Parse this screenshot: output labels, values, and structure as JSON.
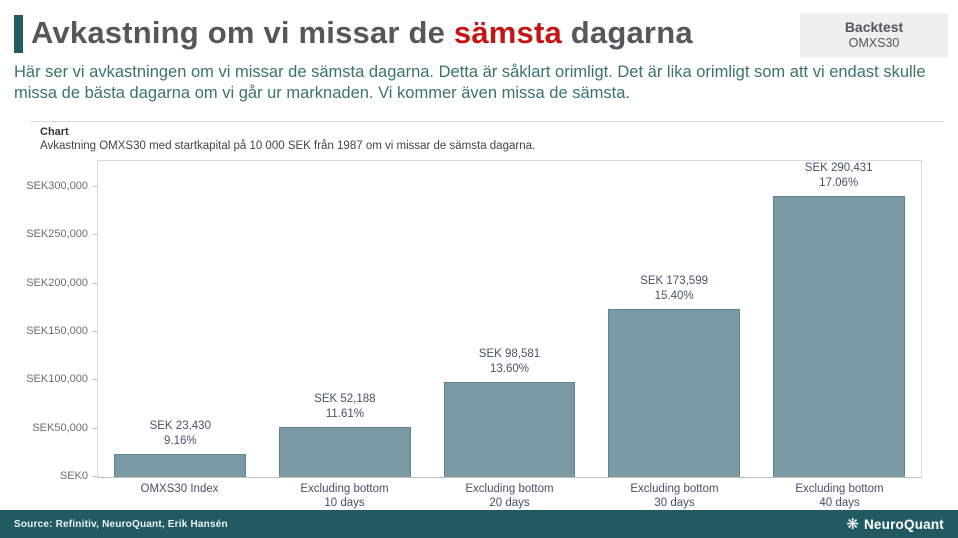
{
  "header": {
    "title_prefix": "Avkastning om vi missar de ",
    "title_highlight": "sämsta",
    "title_suffix": " dagarna",
    "badge_line1": "Backtest",
    "badge_line2": "OMXS30"
  },
  "intro": "Här ser vi avkastningen om vi missar de sämsta dagarna. Detta är såklart orimligt. Det är lika orimligt som att vi endast skulle missa de bästa dagarna om vi går ur marknaden. Vi kommer även missa de sämsta.",
  "chart": {
    "label": "Chart",
    "subtitle": "Avkastning OMXS30 med startkapital på 10 000 SEK från 1987 om vi missar de sämsta dagarna."
  },
  "chart_data": {
    "type": "bar",
    "title": "Avkastning OMXS30 med startkapital på 10 000 SEK från 1987 om vi missar de sämsta dagarna.",
    "xlabel": "",
    "ylabel": "SEK",
    "ylim": [
      0,
      330000
    ],
    "grid": false,
    "legend": false,
    "categories": [
      "OMXS30 Index",
      "Excluding bottom\n10 days",
      "Excluding bottom\n20 days",
      "Excluding bottom\n30 days",
      "Excluding bottom\n40 days"
    ],
    "values": [
      23430,
      52188,
      98581,
      173599,
      290431
    ],
    "value_labels": [
      "SEK 23,430",
      "SEK 52,188",
      "SEK 98,581",
      "SEK 173,599",
      "SEK 290,431"
    ],
    "pct_labels": [
      "9.16%",
      "11.61%",
      "13.60%",
      "15.40%",
      "17.06%"
    ],
    "y_ticks": [
      {
        "label": "SEK0",
        "value": 0
      },
      {
        "label": "SEK50,000",
        "value": 50000
      },
      {
        "label": "SEK100,000",
        "value": 100000
      },
      {
        "label": "SEK150,000",
        "value": 150000
      },
      {
        "label": "SEK200,000",
        "value": 200000
      },
      {
        "label": "SEK250,000",
        "value": 250000
      },
      {
        "label": "SEK300,000",
        "value": 300000
      }
    ],
    "bar_color": "#7b9aa3",
    "bar_border_color": "#5d8694"
  },
  "footer": {
    "source": "Source: Refinitiv, NeuroQuant, Erik Hansén",
    "brand": "NeuroQuant"
  },
  "colors": {
    "accent_teal": "#235a63",
    "title_gray": "#56575a",
    "highlight_red": "#c41414",
    "intro_teal": "#3a7272",
    "badge_bg": "#efefef",
    "footer_bg": "#215a60",
    "label_slate": "#44536b",
    "axis_gray": "#6e6e6e"
  }
}
